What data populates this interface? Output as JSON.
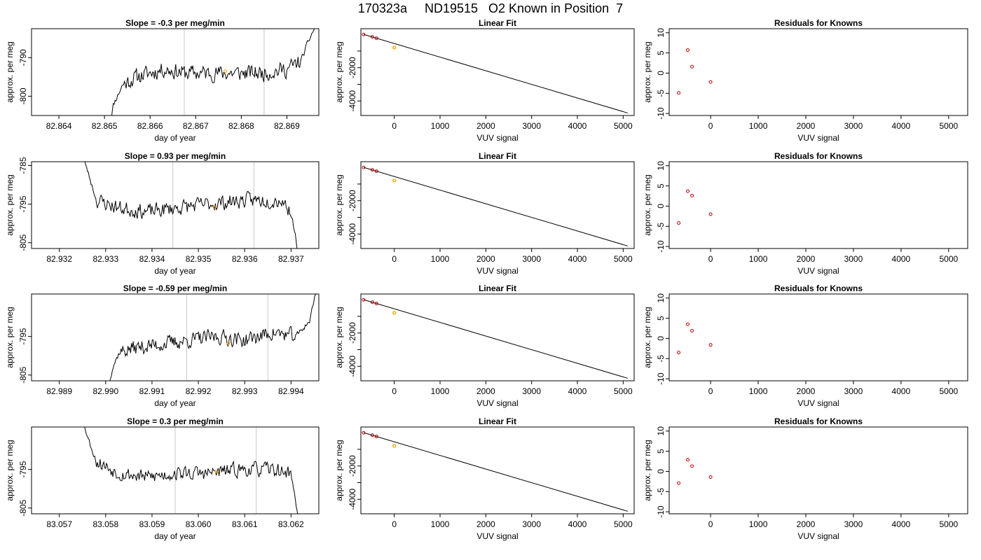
{
  "figure": {
    "title": "170323a     ND19515   O2 Known in Position  7"
  },
  "chart_data": [
    {
      "type": "line",
      "panel": "row1-col1",
      "title": "Slope =  -0.3  per meg/min",
      "xlabel": "day of year",
      "ylabel": "approx. per meg",
      "xlim": [
        82.8634,
        82.8697
      ],
      "ylim": [
        -805,
        -782.5
      ],
      "xticks": [
        82.864,
        82.865,
        82.866,
        82.867,
        82.868,
        82.869
      ],
      "xtick_labels": [
        "82.864",
        "82.865",
        "82.866",
        "82.867",
        "82.868",
        "82.869"
      ],
      "yticks": [
        -800,
        -790
      ],
      "ytick_labels": [
        "-800",
        "-790"
      ],
      "vlines": [
        82.86675,
        82.8685
      ],
      "series_start": 82.8651,
      "series_end": 82.8696,
      "noise_seed": 11,
      "noise_amp": 1.8,
      "level_points": [
        [
          82.8651,
          -808
        ],
        [
          82.8652,
          -802
        ],
        [
          82.8654,
          -797
        ],
        [
          82.8657,
          -795
        ],
        [
          82.8663,
          -793
        ],
        [
          82.8668,
          -794
        ],
        [
          82.8675,
          -794
        ],
        [
          82.8685,
          -794
        ],
        [
          82.869,
          -793
        ],
        [
          82.8693,
          -791
        ],
        [
          82.8695,
          -785
        ],
        [
          82.8697,
          -780
        ]
      ],
      "marker": {
        "x": 82.86765,
        "y": -793.5,
        "color": "#ffa500"
      }
    },
    {
      "type": "scatter-line",
      "panel": "row1-col2",
      "title": "Linear Fit",
      "xlabel": "VUV signal",
      "ylabel": "approx. per meg",
      "xlim": [
        -730,
        5240
      ],
      "ylim": [
        -4870,
        340
      ],
      "xticks": [
        0,
        1000,
        2000,
        3000,
        4000,
        5000
      ],
      "xtick_labels": [
        "0",
        "1000",
        "2000",
        "3000",
        "4000",
        "5000"
      ],
      "yticks": [
        -4000,
        -3000,
        -2000,
        -1000
      ],
      "ytick_labels": [
        "-4000",
        "",
        "-2000",
        ""
      ],
      "line": [
        [
          -670,
          0
        ],
        [
          5100,
          -4720
        ]
      ],
      "points": [
        [
          -670,
          -5
        ],
        [
          -480,
          -150
        ],
        [
          -390,
          -230
        ]
      ],
      "highlight": [
        0,
        -790
      ]
    },
    {
      "type": "scatter",
      "panel": "row1-col3",
      "title": "Residuals for Knowns",
      "xlabel": "VUV signal",
      "ylabel": "approx. per meg",
      "xlim": [
        -870,
        5400
      ],
      "ylim": [
        -10.5,
        11
      ],
      "xticks": [
        0,
        1000,
        2000,
        3000,
        4000,
        5000
      ],
      "xtick_labels": [
        "0",
        "1000",
        "2000",
        "3000",
        "4000",
        "5000"
      ],
      "yticks": [
        -10,
        -5,
        0,
        5,
        10
      ],
      "ytick_labels": [
        "-10",
        "-5",
        "0",
        "5",
        "10"
      ],
      "points": [
        [
          -670,
          -4.9
        ],
        [
          -480,
          5.7
        ],
        [
          -390,
          1.6
        ],
        [
          0,
          -2.2
        ]
      ]
    },
    {
      "type": "line",
      "panel": "row2-col1",
      "title": "Slope =  0.93  per meg/min",
      "xlabel": "day of year",
      "ylabel": "approx. per meg",
      "xlim": [
        82.9314,
        82.9376
      ],
      "ylim": [
        -806.5,
        -784
      ],
      "xticks": [
        82.932,
        82.933,
        82.934,
        82.935,
        82.936,
        82.937
      ],
      "xtick_labels": [
        "82.932",
        "82.933",
        "82.934",
        "82.935",
        "82.936",
        "82.937"
      ],
      "yticks": [
        -805,
        -795,
        -785
      ],
      "ytick_labels": [
        "-805",
        "-795",
        "-785"
      ],
      "vlines": [
        82.93445,
        82.9362
      ],
      "series_start": 82.93245,
      "series_end": 82.93715,
      "noise_seed": 23,
      "noise_amp": 1.7,
      "level_points": [
        [
          82.93245,
          -780
        ],
        [
          82.93265,
          -788
        ],
        [
          82.9328,
          -794
        ],
        [
          82.9333,
          -796
        ],
        [
          82.9339,
          -797
        ],
        [
          82.9345,
          -796
        ],
        [
          82.9352,
          -795
        ],
        [
          82.936,
          -794
        ],
        [
          82.9368,
          -794
        ],
        [
          82.937,
          -797
        ],
        [
          82.93712,
          -805
        ],
        [
          82.93718,
          -810
        ]
      ],
      "marker": {
        "x": 82.93535,
        "y": -795.8,
        "color": "#ffa500"
      }
    },
    {
      "type": "scatter-line",
      "panel": "row2-col2",
      "title": "Linear Fit",
      "xlabel": "VUV signal",
      "ylabel": "approx. per meg",
      "xlim": [
        -730,
        5240
      ],
      "ylim": [
        -4870,
        340
      ],
      "xticks": [
        0,
        1000,
        2000,
        3000,
        4000,
        5000
      ],
      "xtick_labels": [
        "0",
        "1000",
        "2000",
        "3000",
        "4000",
        "5000"
      ],
      "yticks": [
        -4000,
        -3000,
        -2000,
        -1000
      ],
      "ytick_labels": [
        "-4000",
        "",
        "-2000",
        ""
      ],
      "line": [
        [
          -670,
          0
        ],
        [
          5100,
          -4720
        ]
      ],
      "points": [
        [
          -670,
          -5
        ],
        [
          -480,
          -150
        ],
        [
          -390,
          -230
        ]
      ],
      "highlight": [
        0,
        -790
      ]
    },
    {
      "type": "scatter",
      "panel": "row2-col3",
      "title": "Residuals for Knowns",
      "xlabel": "VUV signal",
      "ylabel": "approx. per meg",
      "xlim": [
        -870,
        5400
      ],
      "ylim": [
        -10.5,
        11
      ],
      "xticks": [
        0,
        1000,
        2000,
        3000,
        4000,
        5000
      ],
      "xtick_labels": [
        "0",
        "1000",
        "2000",
        "3000",
        "4000",
        "5000"
      ],
      "yticks": [
        -10,
        -5,
        0,
        5,
        10
      ],
      "ytick_labels": [
        "-10",
        "-5",
        "0",
        "5",
        "10"
      ],
      "points": [
        [
          -670,
          -4.2
        ],
        [
          -480,
          3.7
        ],
        [
          -390,
          2.6
        ],
        [
          0,
          -2.0
        ]
      ]
    },
    {
      "type": "line",
      "panel": "row3-col1",
      "title": "Slope =  -0.59  per meg/min",
      "xlabel": "day of year",
      "ylabel": "approx. per meg",
      "xlim": [
        82.9884,
        82.9946
      ],
      "ylim": [
        -806.5,
        -784
      ],
      "xticks": [
        82.989,
        82.99,
        82.991,
        82.992,
        82.993,
        82.994
      ],
      "xtick_labels": [
        "82.989",
        "82.990",
        "82.991",
        "82.992",
        "82.993",
        "82.994"
      ],
      "yticks": [
        -805,
        -795
      ],
      "ytick_labels": [
        "-805",
        "-795"
      ],
      "vlines": [
        82.99175,
        82.9935
      ],
      "series_start": 82.99005,
      "series_end": 82.99455,
      "noise_seed": 37,
      "noise_amp": 1.7,
      "level_points": [
        [
          82.99005,
          -808
        ],
        [
          82.99015,
          -803
        ],
        [
          82.9903,
          -799
        ],
        [
          82.9906,
          -798
        ],
        [
          82.9912,
          -797
        ],
        [
          82.9918,
          -796
        ],
        [
          82.9924,
          -795
        ],
        [
          82.993,
          -796
        ],
        [
          82.9936,
          -794
        ],
        [
          82.9941,
          -795
        ],
        [
          82.9944,
          -791
        ],
        [
          82.9946,
          -780
        ]
      ],
      "marker": {
        "x": 82.99265,
        "y": -796.8,
        "color": "#ffa500"
      }
    },
    {
      "type": "scatter-line",
      "panel": "row3-col2",
      "title": "Linear Fit",
      "xlabel": "VUV signal",
      "ylabel": "approx. per meg",
      "xlim": [
        -730,
        5240
      ],
      "ylim": [
        -4870,
        340
      ],
      "xticks": [
        0,
        1000,
        2000,
        3000,
        4000,
        5000
      ],
      "xtick_labels": [
        "0",
        "1000",
        "2000",
        "3000",
        "4000",
        "5000"
      ],
      "yticks": [
        -4000,
        -3000,
        -2000,
        -1000
      ],
      "ytick_labels": [
        "-4000",
        "",
        "-2000",
        ""
      ],
      "line": [
        [
          -670,
          0
        ],
        [
          5100,
          -4720
        ]
      ],
      "points": [
        [
          -670,
          -5
        ],
        [
          -480,
          -150
        ],
        [
          -390,
          -230
        ]
      ],
      "highlight": [
        0,
        -790
      ]
    },
    {
      "type": "scatter",
      "panel": "row3-col3",
      "title": "Residuals for Knowns",
      "xlabel": "VUV signal",
      "ylabel": "approx. per meg",
      "xlim": [
        -870,
        5400
      ],
      "ylim": [
        -10.5,
        11
      ],
      "xticks": [
        0,
        1000,
        2000,
        3000,
        4000,
        5000
      ],
      "xtick_labels": [
        "0",
        "1000",
        "2000",
        "3000",
        "4000",
        "5000"
      ],
      "yticks": [
        -10,
        -5,
        0,
        5,
        10
      ],
      "ytick_labels": [
        "-10",
        "-5",
        "0",
        "5",
        "10"
      ],
      "points": [
        [
          -670,
          -3.5
        ],
        [
          -480,
          3.5
        ],
        [
          -390,
          1.9
        ],
        [
          0,
          -1.6
        ]
      ]
    },
    {
      "type": "line",
      "panel": "row4-col1",
      "title": "Slope =  0.3  per meg/min",
      "xlabel": "day of year",
      "ylabel": "approx. per meg",
      "xlim": [
        83.0564,
        83.0626
      ],
      "ylim": [
        -806.5,
        -784
      ],
      "xticks": [
        83.057,
        83.058,
        83.059,
        83.06,
        83.061,
        83.062
      ],
      "xtick_labels": [
        "83.057",
        "83.058",
        "83.059",
        "83.060",
        "83.061",
        "83.062"
      ],
      "yticks": [
        -805,
        -795
      ],
      "ytick_labels": [
        "-805",
        "-795"
      ],
      "vlines": [
        83.0595,
        83.06125
      ],
      "series_start": 83.05745,
      "series_end": 83.06215,
      "noise_seed": 53,
      "noise_amp": 1.6,
      "level_points": [
        [
          83.05745,
          -780
        ],
        [
          83.05765,
          -788
        ],
        [
          83.0578,
          -793
        ],
        [
          83.0583,
          -796
        ],
        [
          83.0589,
          -797
        ],
        [
          83.0595,
          -796
        ],
        [
          83.0602,
          -796
        ],
        [
          83.0609,
          -795
        ],
        [
          83.0616,
          -795
        ],
        [
          83.062,
          -796
        ],
        [
          83.06212,
          -805
        ],
        [
          83.06218,
          -810
        ]
      ],
      "marker": {
        "x": 83.0604,
        "y": -795.6,
        "color": "#ffa500"
      }
    },
    {
      "type": "scatter-line",
      "panel": "row4-col2",
      "title": "Linear Fit",
      "xlabel": "VUV signal",
      "ylabel": "approx. per meg",
      "xlim": [
        -730,
        5240
      ],
      "ylim": [
        -4870,
        340
      ],
      "xticks": [
        0,
        1000,
        2000,
        3000,
        4000,
        5000
      ],
      "xtick_labels": [
        "0",
        "1000",
        "2000",
        "3000",
        "4000",
        "5000"
      ],
      "yticks": [
        -4000,
        -3000,
        -2000,
        -1000
      ],
      "ytick_labels": [
        "-4000",
        "",
        "-2000",
        ""
      ],
      "line": [
        [
          -670,
          0
        ],
        [
          5100,
          -4720
        ]
      ],
      "points": [
        [
          -670,
          -5
        ],
        [
          -480,
          -150
        ],
        [
          -390,
          -230
        ]
      ],
      "highlight": [
        0,
        -790
      ]
    },
    {
      "type": "scatter",
      "panel": "row4-col3",
      "title": "Residuals for Knowns",
      "xlabel": "VUV signal",
      "ylabel": "approx. per meg",
      "xlim": [
        -870,
        5400
      ],
      "ylim": [
        -10.5,
        11
      ],
      "xticks": [
        0,
        1000,
        2000,
        3000,
        4000,
        5000
      ],
      "xtick_labels": [
        "0",
        "1000",
        "2000",
        "3000",
        "4000",
        "5000"
      ],
      "yticks": [
        -10,
        -5,
        0,
        5,
        10
      ],
      "ytick_labels": [
        "-10",
        "-5",
        "0",
        "5",
        "10"
      ],
      "points": [
        [
          -670,
          -2.9
        ],
        [
          -480,
          2.9
        ],
        [
          -390,
          1.3
        ],
        [
          0,
          -1.4
        ]
      ]
    }
  ]
}
